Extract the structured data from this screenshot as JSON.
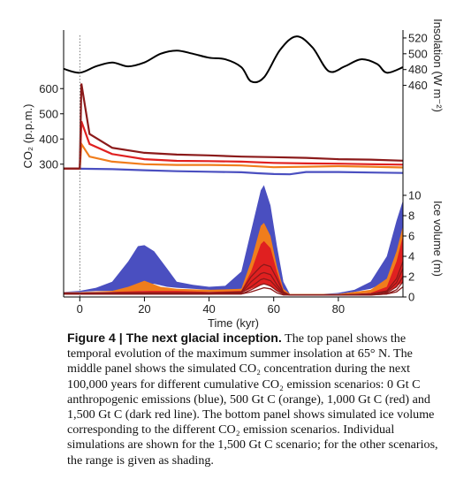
{
  "chart_data": [
    {
      "type": "line",
      "panel": "insolation",
      "ylabel": "Insolation (W m⁻²)",
      "ylim": [
        445,
        530
      ],
      "y_ticks": [
        460,
        480,
        500,
        520
      ],
      "xlim": [
        -5,
        100
      ],
      "series": [
        {
          "color": "#000000",
          "x": [
            -5,
            0,
            5,
            10,
            15,
            20,
            25,
            30,
            35,
            40,
            45,
            50,
            53,
            57,
            62,
            67,
            72,
            77,
            82,
            87,
            92,
            95,
            100
          ],
          "values": [
            481,
            476,
            484,
            489,
            484,
            489,
            500,
            504,
            500,
            495,
            493,
            483,
            465,
            470,
            505,
            522,
            508,
            478,
            484,
            493,
            487,
            476,
            483
          ]
        }
      ]
    },
    {
      "type": "line",
      "panel": "co2",
      "ylabel": "CO₂ (p.p.m.)",
      "ylim": [
        250,
        650
      ],
      "y_ticks": [
        300,
        400,
        500,
        600
      ],
      "xlim": [
        -5,
        100
      ],
      "series": [
        {
          "name": "0 Gt C",
          "color": "#4a4fc0",
          "x": [
            -5,
            0,
            10,
            20,
            30,
            40,
            50,
            55,
            60,
            65,
            70,
            80,
            90,
            100
          ],
          "values": [
            283,
            282,
            280,
            276,
            272,
            270,
            268,
            264,
            261,
            260,
            269,
            269,
            267,
            265
          ]
        },
        {
          "name": "500 Gt C",
          "color": "#f07d1c",
          "x": [
            -5,
            0,
            0.5,
            3,
            10,
            20,
            30,
            40,
            50,
            60,
            70,
            80,
            90,
            100
          ],
          "values": [
            283,
            283,
            380,
            330,
            310,
            300,
            297,
            297,
            295,
            288,
            290,
            292,
            290,
            287
          ]
        },
        {
          "name": "1,000 Gt C",
          "color": "#e02020",
          "x": [
            -5,
            0,
            0.5,
            3,
            10,
            20,
            30,
            40,
            50,
            60,
            70,
            80,
            90,
            100
          ],
          "values": [
            283,
            283,
            470,
            380,
            340,
            320,
            313,
            312,
            310,
            305,
            303,
            302,
            300,
            298
          ]
        },
        {
          "name": "1,500 Gt C",
          "color": "#8b1a1a",
          "x": [
            -5,
            0,
            0.5,
            3,
            10,
            20,
            30,
            40,
            50,
            60,
            70,
            80,
            90,
            100
          ],
          "values": [
            283,
            283,
            620,
            420,
            365,
            345,
            338,
            335,
            330,
            328,
            325,
            320,
            318,
            314
          ]
        }
      ]
    },
    {
      "type": "area",
      "panel": "ice",
      "xlabel": "Time (kyr)",
      "ylabel": "Ice volume (m)",
      "ylim": [
        0,
        12
      ],
      "y_ticks": [
        0,
        2,
        4,
        6,
        8,
        10
      ],
      "xlim": [
        -5,
        100
      ],
      "x_ticks": [
        0,
        20,
        40,
        60,
        80
      ],
      "series": [
        {
          "name": "0 Gt C",
          "color": "#4a4fc0",
          "x": [
            -5,
            0,
            5,
            10,
            15,
            18,
            20,
            23,
            27,
            30,
            35,
            40,
            45,
            50,
            53,
            56,
            57,
            59,
            61,
            63,
            65,
            70,
            75,
            80,
            85,
            90,
            95,
            98,
            100
          ],
          "upper": [
            0.5,
            0.6,
            0.9,
            1.5,
            3.5,
            5.0,
            5.1,
            4.5,
            2.8,
            1.5,
            1.2,
            1.0,
            1.1,
            2.5,
            6.5,
            10.5,
            11.0,
            9.0,
            5.0,
            1.5,
            0.3,
            0.3,
            0.3,
            0.4,
            0.7,
            1.5,
            4.0,
            7.5,
            9.5
          ],
          "lower": [
            0.5,
            0.5,
            0.6,
            0.6,
            0.8,
            1.0,
            1.2,
            1.3,
            1.0,
            0.9,
            0.8,
            0.7,
            0.6,
            0.8,
            1.5,
            2.5,
            3.0,
            2.5,
            1.5,
            0.5,
            0.2,
            0.2,
            0.2,
            0.3,
            0.5,
            0.8,
            1.5,
            2.5,
            3.0
          ]
        },
        {
          "name": "500 Gt C",
          "color": "#f07d1c",
          "x": [
            -5,
            0,
            10,
            15,
            20,
            25,
            30,
            40,
            50,
            53,
            56,
            57,
            59,
            61,
            63,
            65,
            70,
            80,
            90,
            95,
            98,
            100
          ],
          "upper": [
            0.5,
            0.5,
            0.6,
            1.0,
            1.6,
            1.0,
            0.8,
            0.7,
            0.8,
            3.5,
            7.0,
            7.3,
            6.0,
            3.0,
            0.8,
            0.3,
            0.3,
            0.3,
            0.7,
            1.8,
            4.5,
            7.0
          ],
          "lower": [
            0.5,
            0.5,
            0.5,
            0.5,
            0.6,
            0.5,
            0.5,
            0.5,
            0.5,
            1.0,
            1.5,
            1.6,
            1.4,
            0.8,
            0.4,
            0.2,
            0.2,
            0.2,
            0.4,
            0.8,
            1.5,
            2.0
          ]
        },
        {
          "name": "1,000 Gt C",
          "color": "#e02020",
          "x": [
            -5,
            0,
            10,
            20,
            30,
            40,
            50,
            53,
            56,
            57,
            59,
            61,
            63,
            65,
            70,
            80,
            90,
            95,
            98,
            100
          ],
          "upper": [
            0.4,
            0.4,
            0.5,
            0.6,
            0.6,
            0.5,
            0.6,
            2.5,
            5.2,
            5.5,
            4.8,
            2.5,
            0.6,
            0.2,
            0.2,
            0.2,
            0.4,
            1.0,
            3.5,
            6.0
          ],
          "lower": [
            0.4,
            0.4,
            0.4,
            0.4,
            0.4,
            0.4,
            0.4,
            0.8,
            1.2,
            1.3,
            1.0,
            0.6,
            0.3,
            0.2,
            0.2,
            0.2,
            0.3,
            0.5,
            1.0,
            1.5
          ]
        },
        {
          "name": "1,500 Gt C",
          "color": "#8b1a1a",
          "x": [
            -5,
            0,
            10,
            20,
            30,
            40,
            50,
            53,
            56,
            57,
            59,
            61,
            63,
            65,
            70,
            80,
            90,
            95,
            98,
            100
          ],
          "lines": [
            [
              0.4,
              0.4,
              0.4,
              0.4,
              0.4,
              0.4,
              0.5,
              2.0,
              3.0,
              3.2,
              3.0,
              1.8,
              0.5,
              0.2,
              0.2,
              0.2,
              0.3,
              0.6,
              1.8,
              3.5
            ],
            [
              0.4,
              0.4,
              0.4,
              0.4,
              0.4,
              0.4,
              0.4,
              1.5,
              2.3,
              2.4,
              2.2,
              1.2,
              0.4,
              0.2,
              0.2,
              0.2,
              0.3,
              0.5,
              1.4,
              2.8
            ],
            [
              0.3,
              0.3,
              0.3,
              0.3,
              0.3,
              0.3,
              0.4,
              1.0,
              1.7,
              1.8,
              1.6,
              0.9,
              0.3,
              0.2,
              0.2,
              0.2,
              0.2,
              0.4,
              1.0,
              2.0
            ],
            [
              0.3,
              0.3,
              0.3,
              0.3,
              0.3,
              0.3,
              0.3,
              0.7,
              1.2,
              1.3,
              1.1,
              0.6,
              0.3,
              0.2,
              0.2,
              0.2,
              0.2,
              0.3,
              0.7,
              1.5
            ],
            [
              0.3,
              0.3,
              0.3,
              0.3,
              0.3,
              0.3,
              0.3,
              0.5,
              0.8,
              0.9,
              0.8,
              0.4,
              0.2,
              0.2,
              0.2,
              0.2,
              0.2,
              0.3,
              0.5,
              1.0
            ]
          ]
        }
      ]
    }
  ],
  "caption": {
    "title": "Figure 4 | The next glacial inception.",
    "body": " The top panel shows the temporal evolution of the maximum summer insolation at 65° N. The middle panel shows the simulated CO₂ concentration during the next 100,000 years for different cumulative CO₂ emission scenarios: 0 Gt C anthropogenic emissions (blue), 500 Gt C (orange), 1,000 Gt C (red) and 1,500 Gt C (dark red line). The bottom panel shows simulated ice volume corresponding to the different CO₂ emission scenarios. Individual simulations are shown for the 1,500 Gt C scenario; for the other scenarios, the range is given as shading."
  }
}
